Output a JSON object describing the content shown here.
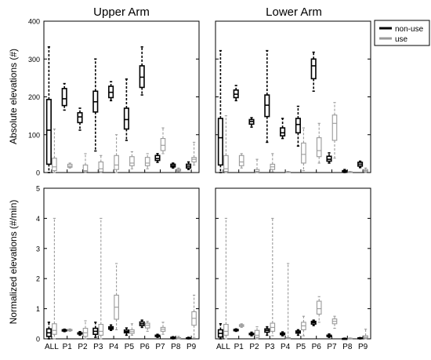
{
  "figure": {
    "y_label_top": "Absolute elevations (#)",
    "y_label_bottom": "Normalized elevations (#/min)",
    "legend": [
      {
        "label": "non-use",
        "color": "#000000"
      },
      {
        "label": "use",
        "color": "#9a9a9a"
      }
    ]
  },
  "chart_data": [
    {
      "type": "boxplot",
      "title": "Upper Arm",
      "ylabel": "Absolute elevations (#)",
      "ylim": [
        0,
        400
      ],
      "yticks": [
        0,
        100,
        200,
        300,
        400
      ],
      "categories": [
        "ALL",
        "P1",
        "P2",
        "P3",
        "P4",
        "P5",
        "P6",
        "P7",
        "P8",
        "P9"
      ],
      "series": [
        {
          "name": "non-use",
          "color": "#000000",
          "boxes": [
            {
              "min": 0,
              "q1": 22,
              "median": 112,
              "q3": 193,
              "max": 332
            },
            {
              "min": 165,
              "q1": 177,
              "median": 195,
              "q3": 222,
              "max": 235
            },
            {
              "min": 112,
              "q1": 132,
              "median": 147,
              "q3": 158,
              "max": 170
            },
            {
              "min": 57,
              "q1": 160,
              "median": 187,
              "q3": 215,
              "max": 300
            },
            {
              "min": 190,
              "q1": 198,
              "median": 212,
              "q3": 228,
              "max": 240
            },
            {
              "min": 85,
              "q1": 115,
              "median": 140,
              "q3": 170,
              "max": 247
            },
            {
              "min": 205,
              "q1": 225,
              "median": 252,
              "q3": 282,
              "max": 332
            },
            {
              "min": 27,
              "q1": 32,
              "median": 37,
              "q3": 45,
              "max": 50
            },
            {
              "min": 12,
              "q1": 15,
              "median": 18,
              "q3": 22,
              "max": 25
            },
            {
              "min": 8,
              "q1": 12,
              "median": 17,
              "q3": 22,
              "max": 28
            }
          ]
        },
        {
          "name": "use",
          "color": "#9a9a9a",
          "boxes": [
            {
              "min": 0,
              "q1": 5,
              "median": 15,
              "q3": 38,
              "max": 115
            },
            {
              "min": 12,
              "q1": 14,
              "median": 17,
              "q3": 22,
              "max": 25
            },
            {
              "min": 0,
              "q1": 2,
              "median": 5,
              "q3": 20,
              "max": 50
            },
            {
              "min": 0,
              "q1": 2,
              "median": 10,
              "q3": 28,
              "max": 45
            },
            {
              "min": 0,
              "q1": 8,
              "median": 20,
              "q3": 45,
              "max": 100
            },
            {
              "min": 10,
              "q1": 18,
              "median": 25,
              "q3": 42,
              "max": 55
            },
            {
              "min": 10,
              "q1": 18,
              "median": 25,
              "q3": 40,
              "max": 50
            },
            {
              "min": 50,
              "q1": 58,
              "median": 72,
              "q3": 90,
              "max": 118
            },
            {
              "min": 2,
              "q1": 4,
              "median": 6,
              "q3": 9,
              "max": 12
            },
            {
              "min": 20,
              "q1": 28,
              "median": 35,
              "q3": 40,
              "max": 80
            }
          ]
        }
      ]
    },
    {
      "type": "boxplot",
      "title": "Lower Arm",
      "ylim": [
        0,
        400
      ],
      "yticks": [
        0,
        100,
        200,
        300,
        400
      ],
      "categories": [
        "ALL",
        "P1",
        "P2",
        "P3",
        "P4",
        "P5",
        "P6",
        "P7",
        "P8",
        "P9"
      ],
      "series": [
        {
          "name": "non-use",
          "color": "#000000",
          "boxes": [
            {
              "min": 0,
              "q1": 20,
              "median": 92,
              "q3": 143,
              "max": 322
            },
            {
              "min": 190,
              "q1": 198,
              "median": 207,
              "q3": 218,
              "max": 230
            },
            {
              "min": 120,
              "q1": 128,
              "median": 135,
              "q3": 140,
              "max": 145
            },
            {
              "min": 80,
              "q1": 148,
              "median": 178,
              "q3": 205,
              "max": 322
            },
            {
              "min": 90,
              "q1": 97,
              "median": 105,
              "q3": 118,
              "max": 143
            },
            {
              "min": 70,
              "q1": 105,
              "median": 127,
              "q3": 143,
              "max": 175
            },
            {
              "min": 215,
              "q1": 248,
              "median": 282,
              "q3": 300,
              "max": 318
            },
            {
              "min": 25,
              "q1": 30,
              "median": 35,
              "q3": 43,
              "max": 52
            },
            {
              "min": 0,
              "q1": 1,
              "median": 3,
              "q3": 5,
              "max": 8
            },
            {
              "min": 13,
              "q1": 17,
              "median": 22,
              "q3": 27,
              "max": 30
            }
          ]
        },
        {
          "name": "use",
          "color": "#9a9a9a",
          "boxes": [
            {
              "min": 0,
              "q1": 3,
              "median": 10,
              "q3": 45,
              "max": 150
            },
            {
              "min": 12,
              "q1": 18,
              "median": 28,
              "q3": 45,
              "max": 50
            },
            {
              "min": 0,
              "q1": 1,
              "median": 3,
              "q3": 8,
              "max": 35
            },
            {
              "min": 2,
              "q1": 8,
              "median": 15,
              "q3": 22,
              "max": 50
            },
            {
              "min": 0,
              "q1": 0,
              "median": 1,
              "q3": 2,
              "max": 3
            },
            {
              "min": 5,
              "q1": 25,
              "median": 48,
              "q3": 78,
              "max": 118
            },
            {
              "min": 25,
              "q1": 42,
              "median": 58,
              "q3": 92,
              "max": 130
            },
            {
              "min": 38,
              "q1": 85,
              "median": 130,
              "q3": 152,
              "max": 185
            },
            {
              "min": 0,
              "q1": 0,
              "median": 1,
              "q3": 2,
              "max": 3
            },
            {
              "min": 0,
              "q1": 2,
              "median": 5,
              "q3": 8,
              "max": 12
            }
          ]
        }
      ]
    },
    {
      "type": "boxplot",
      "ylabel": "Normalized elevations (#/min)",
      "ylim": [
        0,
        5
      ],
      "yticks": [
        0,
        1,
        2,
        3,
        4,
        5
      ],
      "categories": [
        "ALL",
        "P1",
        "P2",
        "P3",
        "P4",
        "P5",
        "P6",
        "P7",
        "P8",
        "P9"
      ],
      "series": [
        {
          "name": "non-use",
          "color": "#000000",
          "boxes": [
            {
              "min": 0,
              "q1": 0.08,
              "median": 0.2,
              "q3": 0.33,
              "max": 0.55
            },
            {
              "min": 0.24,
              "q1": 0.26,
              "median": 0.28,
              "q3": 0.3,
              "max": 0.32
            },
            {
              "min": 0.12,
              "q1": 0.16,
              "median": 0.18,
              "q3": 0.2,
              "max": 0.24
            },
            {
              "min": 0.05,
              "q1": 0.15,
              "median": 0.25,
              "q3": 0.35,
              "max": 0.55
            },
            {
              "min": 0.28,
              "q1": 0.32,
              "median": 0.36,
              "q3": 0.4,
              "max": 0.46
            },
            {
              "min": 0.12,
              "q1": 0.2,
              "median": 0.24,
              "q3": 0.29,
              "max": 0.36
            },
            {
              "min": 0.38,
              "q1": 0.44,
              "median": 0.5,
              "q3": 0.56,
              "max": 0.62
            },
            {
              "min": 0.05,
              "q1": 0.08,
              "median": 0.1,
              "q3": 0.12,
              "max": 0.15
            },
            {
              "min": 0.0,
              "q1": 0.02,
              "median": 0.04,
              "q3": 0.05,
              "max": 0.07
            },
            {
              "min": 0.0,
              "q1": 0.01,
              "median": 0.02,
              "q3": 0.03,
              "max": 0.05
            }
          ]
        },
        {
          "name": "use",
          "color": "#9a9a9a",
          "boxes": [
            {
              "min": 0,
              "q1": 0.15,
              "median": 0.28,
              "q3": 0.5,
              "max": 4.0
            },
            {
              "min": 0.25,
              "q1": 0.27,
              "median": 0.29,
              "q3": 0.31,
              "max": 0.33
            },
            {
              "min": 0.0,
              "q1": 0.08,
              "median": 0.2,
              "q3": 0.35,
              "max": 0.6
            },
            {
              "min": 0.0,
              "q1": 0.12,
              "median": 0.25,
              "q3": 0.48,
              "max": 4.0
            },
            {
              "min": 0.3,
              "q1": 0.65,
              "median": 1.05,
              "q3": 1.45,
              "max": 2.5
            },
            {
              "min": 0.12,
              "q1": 0.18,
              "median": 0.24,
              "q3": 0.3,
              "max": 0.5
            },
            {
              "min": 0.25,
              "q1": 0.36,
              "median": 0.45,
              "q3": 0.52,
              "max": 0.58
            },
            {
              "min": 0.15,
              "q1": 0.25,
              "median": 0.32,
              "q3": 0.38,
              "max": 0.55
            },
            {
              "min": 0.0,
              "q1": 0.01,
              "median": 0.02,
              "q3": 0.04,
              "max": 0.08
            },
            {
              "min": 0.05,
              "q1": 0.45,
              "median": 0.68,
              "q3": 0.9,
              "max": 1.45
            }
          ]
        }
      ]
    },
    {
      "type": "boxplot",
      "ylim": [
        0,
        5
      ],
      "yticks": [
        0,
        1,
        2,
        3,
        4,
        5
      ],
      "categories": [
        "ALL",
        "P1",
        "P2",
        "P3",
        "P4",
        "P5",
        "P6",
        "P7",
        "P8",
        "P9"
      ],
      "series": [
        {
          "name": "non-use",
          "color": "#000000",
          "boxes": [
            {
              "min": 0,
              "q1": 0.06,
              "median": 0.18,
              "q3": 0.3,
              "max": 0.5
            },
            {
              "min": 0.25,
              "q1": 0.27,
              "median": 0.29,
              "q3": 0.31,
              "max": 0.33
            },
            {
              "min": 0.1,
              "q1": 0.14,
              "median": 0.16,
              "q3": 0.18,
              "max": 0.22
            },
            {
              "min": 0.12,
              "q1": 0.22,
              "median": 0.28,
              "q3": 0.33,
              "max": 0.4
            },
            {
              "min": 0.1,
              "q1": 0.14,
              "median": 0.17,
              "q3": 0.19,
              "max": 0.23
            },
            {
              "min": 0.12,
              "q1": 0.19,
              "median": 0.22,
              "q3": 0.26,
              "max": 0.3
            },
            {
              "min": 0.44,
              "q1": 0.49,
              "median": 0.54,
              "q3": 0.58,
              "max": 0.62
            },
            {
              "min": 0.05,
              "q1": 0.08,
              "median": 0.1,
              "q3": 0.12,
              "max": 0.16
            },
            {
              "min": 0.0,
              "q1": 0.0,
              "median": 0.01,
              "q3": 0.01,
              "max": 0.02
            },
            {
              "min": 0.0,
              "q1": 0.01,
              "median": 0.02,
              "q3": 0.03,
              "max": 0.04
            }
          ]
        },
        {
          "name": "use",
          "color": "#9a9a9a",
          "boxes": [
            {
              "min": 0,
              "q1": 0.12,
              "median": 0.25,
              "q3": 0.48,
              "max": 4.0
            },
            {
              "min": 0.38,
              "q1": 0.41,
              "median": 0.44,
              "q3": 0.47,
              "max": 0.5
            },
            {
              "min": 0.0,
              "q1": 0.05,
              "median": 0.12,
              "q3": 0.28,
              "max": 0.4
            },
            {
              "min": 0.1,
              "q1": 0.25,
              "median": 0.38,
              "q3": 0.52,
              "max": 4.0
            },
            {
              "min": 0.0,
              "q1": 0.0,
              "median": 0.02,
              "q3": 0.04,
              "max": 2.5
            },
            {
              "min": 0.1,
              "q1": 0.3,
              "median": 0.43,
              "q3": 0.55,
              "max": 0.75
            },
            {
              "min": 0.55,
              "q1": 0.82,
              "median": 1.0,
              "q3": 1.25,
              "max": 1.4
            },
            {
              "min": 0.35,
              "q1": 0.5,
              "median": 0.58,
              "q3": 0.66,
              "max": 0.75
            },
            {
              "min": 0.0,
              "q1": 0.0,
              "median": 0.01,
              "q3": 0.02,
              "max": 0.03
            },
            {
              "min": 0.0,
              "q1": 0.02,
              "median": 0.05,
              "q3": 0.1,
              "max": 0.32
            }
          ]
        }
      ]
    }
  ]
}
